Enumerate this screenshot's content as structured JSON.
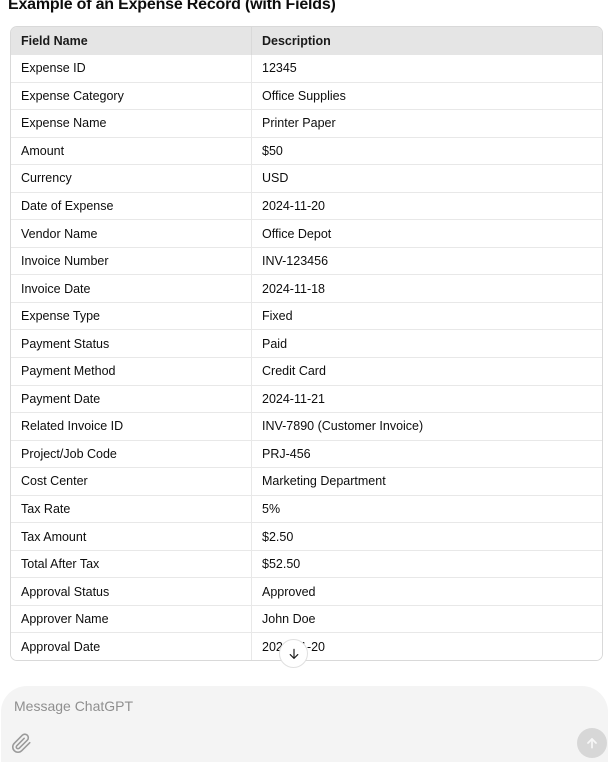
{
  "title": "Example of an Expense Record (with Fields)",
  "table": {
    "headers": [
      "Field Name",
      "Description"
    ],
    "rows": [
      {
        "field": "Expense ID",
        "description": "12345"
      },
      {
        "field": "Expense Category",
        "description": "Office Supplies"
      },
      {
        "field": "Expense Name",
        "description": "Printer Paper"
      },
      {
        "field": "Amount",
        "description": "$50"
      },
      {
        "field": "Currency",
        "description": "USD"
      },
      {
        "field": "Date of Expense",
        "description": "2024-11-20"
      },
      {
        "field": "Vendor Name",
        "description": "Office Depot"
      },
      {
        "field": "Invoice Number",
        "description": "INV-123456"
      },
      {
        "field": "Invoice Date",
        "description": "2024-11-18"
      },
      {
        "field": "Expense Type",
        "description": "Fixed"
      },
      {
        "field": "Payment Status",
        "description": "Paid"
      },
      {
        "field": "Payment Method",
        "description": "Credit Card"
      },
      {
        "field": "Payment Date",
        "description": "2024-11-21"
      },
      {
        "field": "Related Invoice ID",
        "description": "INV-7890 (Customer Invoice)"
      },
      {
        "field": "Project/Job Code",
        "description": "PRJ-456"
      },
      {
        "field": "Cost Center",
        "description": "Marketing Department"
      },
      {
        "field": "Tax Rate",
        "description": "5%"
      },
      {
        "field": "Tax Amount",
        "description": "$2.50"
      },
      {
        "field": "Total After Tax",
        "description": "$52.50"
      },
      {
        "field": "Approval Status",
        "description": "Approved"
      },
      {
        "field": "Approver Name",
        "description": "John Doe"
      },
      {
        "field": "Approval Date",
        "description": "2024-11-20"
      }
    ]
  },
  "composer": {
    "placeholder": "Message ChatGPT"
  },
  "icons": {
    "scroll_down": "arrow-down-icon",
    "attach": "paperclip-icon",
    "send": "arrow-up-icon"
  },
  "colors": {
    "header_bg": "#e5e5e5",
    "table_border": "#d9d9d9",
    "row_divider": "#e8e8e8",
    "text": "#0d0d0d",
    "placeholder": "#8f8f8f",
    "composer_bg": "#f4f4f4",
    "send_button_bg": "#d7d7d7",
    "icon_gray": "#9b9b9b"
  }
}
